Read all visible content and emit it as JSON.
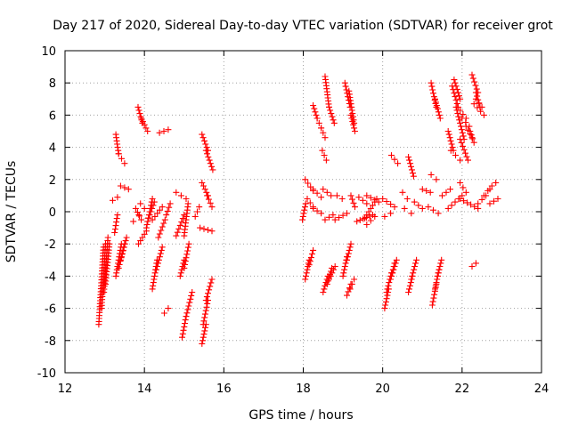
{
  "chart_data": {
    "type": "scatter",
    "title": "Day 217 of 2020, Sidereal Day-to-day VTEC variation (SDTVAR) for receiver grot",
    "xlabel": "GPS time / hours",
    "ylabel": "SDTVAR / TECUs",
    "xlim": [
      12,
      24
    ],
    "ylim": [
      -10,
      10
    ],
    "x_ticks": [
      "12",
      "14",
      "16",
      "18",
      "20",
      "22",
      "24"
    ],
    "y_ticks": [
      "10",
      "8",
      "6",
      "4",
      "2",
      "0",
      "-2",
      "-4",
      "-6",
      "-8",
      "-10"
    ],
    "grid": true,
    "marker": "+",
    "marker_color": "#ff0000",
    "series": [
      {
        "name": "SDTVAR",
        "segments": [
          [
            12.85,
            -7.0,
            12.97,
            -2.2
          ],
          [
            12.92,
            -6.0,
            13.02,
            -2.0
          ],
          [
            12.98,
            -5.0,
            13.08,
            -1.6
          ],
          [
            13.02,
            -4.5,
            13.12,
            -2.0
          ],
          [
            13.2,
            0.7,
            13.32,
            0.9
          ],
          [
            13.25,
            -1.3,
            13.32,
            -0.2
          ],
          [
            13.28,
            4.8,
            13.35,
            3.6
          ],
          [
            13.35,
            3.6,
            13.5,
            3.0
          ],
          [
            13.28,
            -4.0,
            13.42,
            -2.0
          ],
          [
            13.35,
            -3.5,
            13.5,
            -2.0
          ],
          [
            13.4,
            -3.0,
            13.55,
            -1.6
          ],
          [
            13.4,
            1.6,
            13.6,
            1.4
          ],
          [
            13.72,
            -0.6,
            13.86,
            -0.2
          ],
          [
            13.84,
            6.5,
            13.95,
            5.5
          ],
          [
            13.92,
            5.8,
            14.08,
            5.0
          ],
          [
            13.85,
            -2.0,
            14.05,
            -1.2
          ],
          [
            13.9,
            0.5,
            14.0,
            0.2
          ],
          [
            14.05,
            -1.0,
            14.2,
            0.8
          ],
          [
            14.2,
            -0.5,
            14.45,
            0.3
          ],
          [
            14.2,
            -4.8,
            14.32,
            -3.0
          ],
          [
            14.3,
            -3.6,
            14.45,
            -2.2
          ],
          [
            14.38,
            4.9,
            14.6,
            5.1
          ],
          [
            14.35,
            -1.6,
            14.52,
            -0.5
          ],
          [
            14.5,
            -6.3,
            14.6,
            -6.0
          ],
          [
            14.8,
            1.2,
            15.05,
            0.8
          ],
          [
            14.8,
            -1.5,
            15.0,
            -0.2
          ],
          [
            14.95,
            -7.8,
            15.05,
            -6.5
          ],
          [
            14.9,
            -4.0,
            15.0,
            -3.0
          ],
          [
            15.0,
            -3.5,
            15.12,
            -2.0
          ],
          [
            15.05,
            -6.5,
            15.2,
            -5.0
          ],
          [
            15.0,
            -1.5,
            15.1,
            0.5
          ],
          [
            15.28,
            -0.3,
            15.38,
            0.3
          ],
          [
            15.45,
            -8.2,
            15.55,
            -7.0
          ],
          [
            15.48,
            -7.0,
            15.6,
            -5.5
          ],
          [
            15.55,
            -5.5,
            15.7,
            -4.2
          ],
          [
            15.4,
            -1.0,
            15.7,
            -1.2
          ],
          [
            15.45,
            1.8,
            15.6,
            1.0
          ],
          [
            15.58,
            1.0,
            15.7,
            0.3
          ],
          [
            15.45,
            4.8,
            15.6,
            3.8
          ],
          [
            15.55,
            3.8,
            15.72,
            2.6
          ],
          [
            17.98,
            -0.5,
            18.06,
            0.5
          ],
          [
            18.05,
            -4.2,
            18.15,
            -3.0
          ],
          [
            18.15,
            -3.3,
            18.25,
            -2.4
          ],
          [
            18.1,
            0.8,
            18.25,
            0.3
          ],
          [
            18.05,
            2.0,
            18.25,
            1.3
          ],
          [
            18.25,
            1.4,
            18.45,
            0.9
          ],
          [
            18.25,
            0.2,
            18.45,
            -0.1
          ],
          [
            18.25,
            6.6,
            18.35,
            5.8
          ],
          [
            18.35,
            5.8,
            18.45,
            5.2
          ],
          [
            18.45,
            5.2,
            18.55,
            4.6
          ],
          [
            18.48,
            3.8,
            18.58,
            3.2
          ],
          [
            18.55,
            8.4,
            18.65,
            6.5
          ],
          [
            18.65,
            6.5,
            18.78,
            5.5
          ],
          [
            18.5,
            1.4,
            18.7,
            1.0
          ],
          [
            18.5,
            -5.0,
            18.62,
            -4.0
          ],
          [
            18.6,
            -4.5,
            18.72,
            -3.5
          ],
          [
            18.65,
            -4.2,
            18.8,
            -3.4
          ],
          [
            18.55,
            -0.5,
            18.75,
            -0.2
          ],
          [
            18.8,
            -0.5,
            19.1,
            -0.1
          ],
          [
            19.0,
            -4.0,
            19.1,
            -2.8
          ],
          [
            19.1,
            -3.0,
            19.2,
            -2.0
          ],
          [
            19.1,
            -5.2,
            19.2,
            -4.5
          ],
          [
            19.18,
            -4.8,
            19.28,
            -4.2
          ],
          [
            19.05,
            8.0,
            19.18,
            6.5
          ],
          [
            19.15,
            7.5,
            19.28,
            5.5
          ],
          [
            19.2,
            6.0,
            19.3,
            5.0
          ],
          [
            18.85,
            1.0,
            18.98,
            0.8
          ],
          [
            19.2,
            1.0,
            19.3,
            0.3
          ],
          [
            19.35,
            -0.6,
            19.75,
            -0.2
          ],
          [
            19.4,
            0.9,
            19.6,
            0.5
          ],
          [
            19.55,
            -0.4,
            19.85,
            0.8
          ],
          [
            19.6,
            1.0,
            19.9,
            0.6
          ],
          [
            19.6,
            -0.8,
            19.8,
            -0.3
          ],
          [
            20.0,
            0.8,
            20.3,
            0.3
          ],
          [
            20.05,
            -0.3,
            20.2,
            -0.1
          ],
          [
            20.05,
            -6.0,
            20.15,
            -4.8
          ],
          [
            20.1,
            -5.0,
            20.22,
            -3.8
          ],
          [
            20.2,
            -4.2,
            20.3,
            -3.2
          ],
          [
            20.25,
            -3.8,
            20.35,
            -3.0
          ],
          [
            20.22,
            3.5,
            20.38,
            3.0
          ],
          [
            20.5,
            1.2,
            20.62,
            0.8
          ],
          [
            20.55,
            0.2,
            20.72,
            -0.1
          ],
          [
            20.65,
            -5.0,
            20.75,
            -4.0
          ],
          [
            20.72,
            -4.2,
            20.85,
            -3.0
          ],
          [
            20.65,
            3.4,
            20.78,
            2.2
          ],
          [
            20.8,
            0.6,
            21.0,
            0.2
          ],
          [
            21.0,
            1.4,
            21.2,
            1.2
          ],
          [
            21.15,
            0.3,
            21.4,
            -0.1
          ],
          [
            21.25,
            -5.8,
            21.35,
            -4.5
          ],
          [
            21.32,
            -4.8,
            21.42,
            -3.6
          ],
          [
            21.38,
            -4.0,
            21.48,
            -3.0
          ],
          [
            21.22,
            2.3,
            21.35,
            2.0
          ],
          [
            21.22,
            8.0,
            21.35,
            6.5
          ],
          [
            21.32,
            7.0,
            21.45,
            5.8
          ],
          [
            21.5,
            1.0,
            21.7,
            1.4
          ],
          [
            21.65,
            0.2,
            22.0,
            1.0
          ],
          [
            21.65,
            5.0,
            21.78,
            3.8
          ],
          [
            21.72,
            3.8,
            21.95,
            3.2
          ],
          [
            21.75,
            7.8,
            21.9,
            6.5
          ],
          [
            21.85,
            6.5,
            22.05,
            4.5
          ],
          [
            21.95,
            4.5,
            22.15,
            3.2
          ],
          [
            21.8,
            8.2,
            21.95,
            7.0
          ],
          [
            21.95,
            1.8,
            22.1,
            1.2
          ],
          [
            21.95,
            0.8,
            22.4,
            0.2
          ],
          [
            21.95,
            6.3,
            22.1,
            5.8
          ],
          [
            22.0,
            5.8,
            22.18,
            5.3
          ],
          [
            22.1,
            5.3,
            22.25,
            4.6
          ],
          [
            22.25,
            8.5,
            22.4,
            7.4
          ],
          [
            22.35,
            7.4,
            22.45,
            6.5
          ],
          [
            22.3,
            6.7,
            22.55,
            6.0
          ],
          [
            22.4,
            0.5,
            22.6,
            1.0
          ],
          [
            22.55,
            1.0,
            22.75,
            1.6
          ],
          [
            22.7,
            1.4,
            22.85,
            1.8
          ],
          [
            22.25,
            -3.4,
            22.35,
            -3.2
          ],
          [
            22.35,
            7.0,
            22.5,
            6.5
          ],
          [
            22.7,
            0.5,
            22.9,
            0.8
          ],
          [
            22.2,
            5.0,
            22.3,
            4.3
          ],
          [
            14.55,
            -0.2,
            14.65,
            0.5
          ],
          [
            14.1,
            -0.4,
            14.25,
            0.6
          ],
          [
            13.78,
            0.2,
            13.92,
            -0.5
          ]
        ]
      }
    ]
  }
}
